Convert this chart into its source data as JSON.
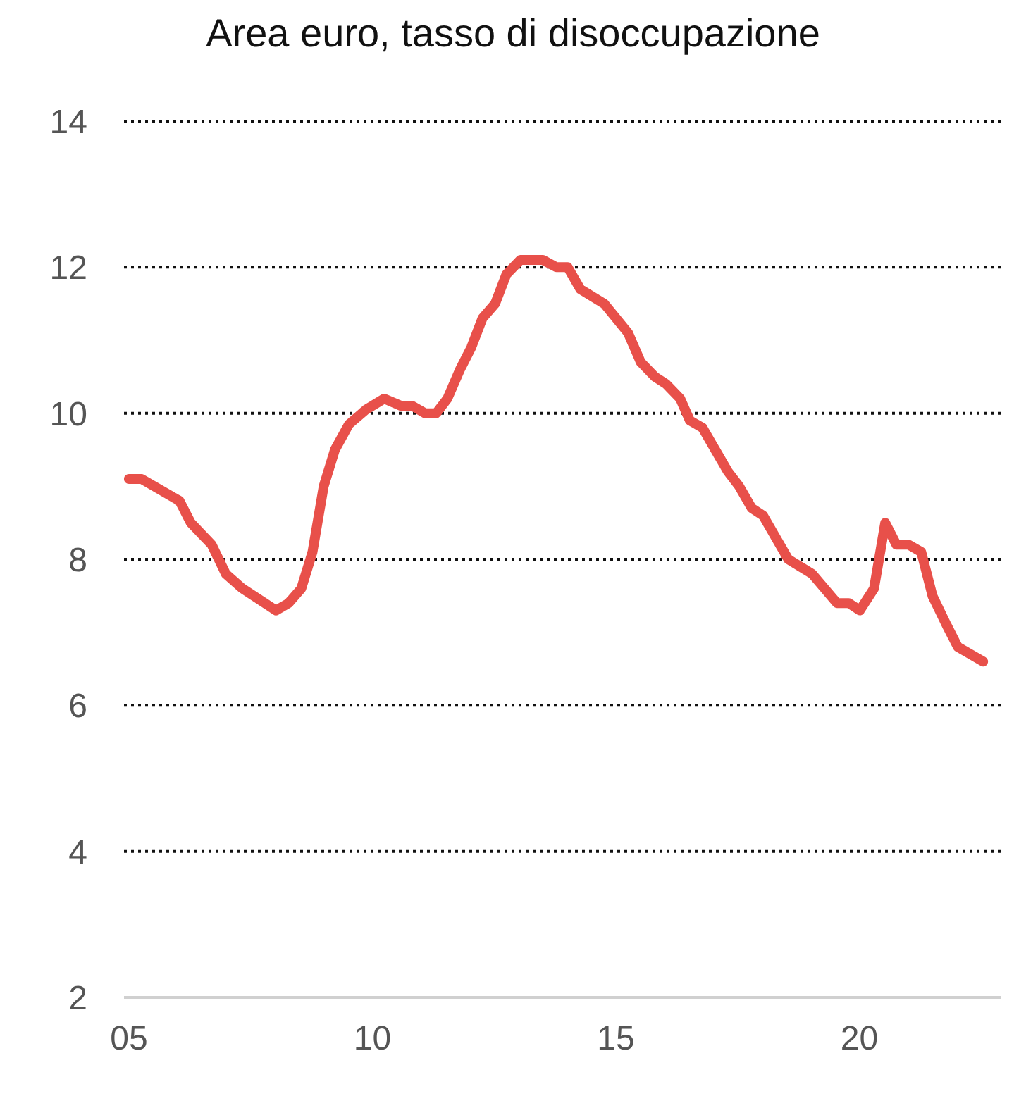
{
  "chart_data": {
    "type": "line",
    "title": "Area euro, tasso di disoccupazione",
    "x": [
      2005.0,
      2005.26,
      2006.04,
      2006.27,
      2006.7,
      2006.99,
      2007.33,
      2008.02,
      2008.28,
      2008.54,
      2008.77,
      2009.0,
      2009.23,
      2009.52,
      2009.87,
      2010.24,
      2010.59,
      2010.82,
      2011.08,
      2011.31,
      2011.54,
      2011.8,
      2012.03,
      2012.26,
      2012.52,
      2012.75,
      2013.04,
      2013.5,
      2013.78,
      2014.01,
      2014.27,
      2014.76,
      2015.25,
      2015.51,
      2015.8,
      2016.03,
      2016.32,
      2016.52,
      2016.78,
      2017.3,
      2017.53,
      2017.79,
      2018.02,
      2018.54,
      2019.03,
      2019.54,
      2019.78,
      2020.01,
      2020.3,
      2020.53,
      2020.76,
      2021.01,
      2021.27,
      2021.5,
      2021.79,
      2022.02,
      2022.54
    ],
    "series": [
      {
        "color": "#e8504a",
        "values": [
          9.1,
          9.1,
          8.8,
          8.5,
          8.2,
          7.8,
          7.6,
          7.3,
          7.4,
          7.6,
          8.1,
          9.0,
          9.5,
          9.85,
          10.05,
          10.2,
          10.1,
          10.1,
          10.0,
          10.0,
          10.2,
          10.6,
          10.9,
          11.3,
          11.5,
          11.9,
          12.1,
          12.1,
          12.0,
          12.0,
          11.7,
          11.5,
          11.1,
          10.7,
          10.5,
          10.4,
          10.2,
          9.9,
          9.8,
          9.2,
          9.0,
          8.7,
          8.6,
          8.0,
          7.8,
          7.4,
          7.4,
          7.3,
          7.6,
          8.5,
          8.2,
          8.2,
          8.1,
          7.5,
          7.1,
          6.8,
          6.6
        ]
      }
    ],
    "xlim": [
      2004.9,
      2022.9
    ],
    "xticks": [
      {
        "value": 2005,
        "label": "05"
      },
      {
        "value": 2010,
        "label": "10"
      },
      {
        "value": 2015,
        "label": "15"
      },
      {
        "value": 2020,
        "label": "20"
      }
    ],
    "ylim": [
      2,
      14
    ],
    "yticks": [
      2,
      4,
      6,
      8,
      10,
      12,
      14
    ],
    "grid": "y",
    "marker": "none",
    "line_style": "solid"
  }
}
